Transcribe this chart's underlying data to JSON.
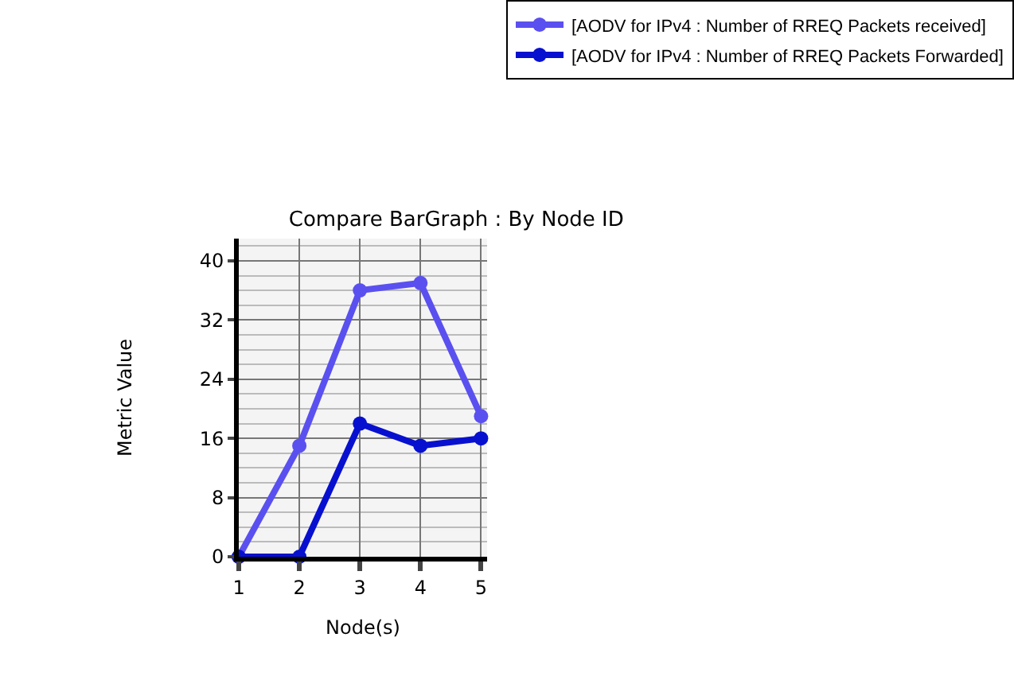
{
  "chart_data": {
    "type": "line",
    "title": "Compare BarGraph : By Node ID",
    "xlabel": "Node(s)",
    "ylabel": "Metric Value",
    "x": [
      1,
      2,
      3,
      4,
      5
    ],
    "series": [
      {
        "name": "[AODV for IPv4 : Number of RREQ Packets received]",
        "color": "#5a50f0",
        "values": [
          0,
          15,
          36,
          37,
          19
        ]
      },
      {
        "name": "[AODV for IPv4 : Number of RREQ Packets Forwarded]",
        "color": "#0810d0",
        "values": [
          0,
          0,
          18,
          15,
          16
        ]
      }
    ],
    "xlim": [
      1,
      5.1
    ],
    "xticks": [
      1,
      2,
      3,
      4,
      5
    ],
    "ylim": [
      0,
      43
    ],
    "yticks": [
      0,
      8,
      16,
      24,
      32,
      40
    ],
    "grid": true,
    "legend": "top right",
    "marker": "circle",
    "line_style": "solid"
  }
}
